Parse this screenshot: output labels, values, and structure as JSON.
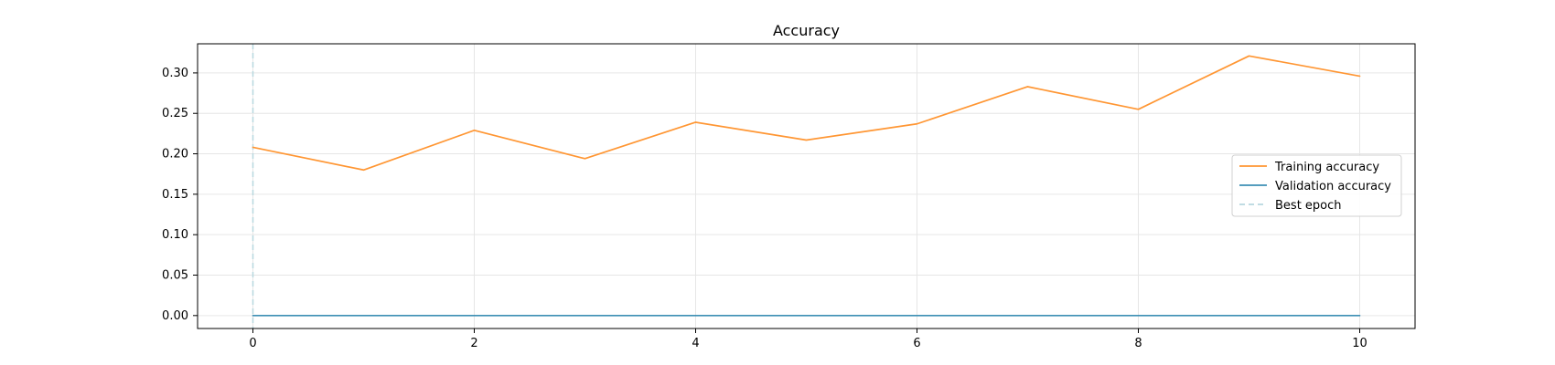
{
  "chart_data": {
    "type": "line",
    "title": "Accuracy",
    "xlabel": "",
    "ylabel": "",
    "xlim": [
      -0.5,
      10.5
    ],
    "ylim": [
      -0.016,
      0.336
    ],
    "x_ticks": [
      0,
      2,
      4,
      6,
      8,
      10
    ],
    "y_ticks": [
      0.0,
      0.05,
      0.1,
      0.15,
      0.2,
      0.25,
      0.3
    ],
    "x_tick_labels": [
      "0",
      "2",
      "4",
      "6",
      "8",
      "10"
    ],
    "y_tick_labels": [
      "0.00",
      "0.05",
      "0.10",
      "0.15",
      "0.20",
      "0.25",
      "0.30"
    ],
    "grid": true,
    "legend_placement": "center-right",
    "x": [
      0,
      1,
      2,
      3,
      4,
      5,
      6,
      7,
      8,
      9,
      10
    ],
    "series": [
      {
        "name": "Training accuracy",
        "color": "#ff9633",
        "style": "solid",
        "values": [
          0.208,
          0.18,
          0.229,
          0.194,
          0.239,
          0.217,
          0.237,
          0.283,
          0.255,
          0.321,
          0.296
        ]
      },
      {
        "name": "Validation accuracy",
        "color": "#3d8fb4",
        "style": "solid",
        "values": [
          0,
          0,
          0,
          0,
          0,
          0,
          0,
          0,
          0,
          0,
          0
        ]
      }
    ],
    "best_epoch": {
      "name": "Best epoch",
      "x": 0,
      "color": "#b7d8df",
      "style": "dashed"
    }
  }
}
